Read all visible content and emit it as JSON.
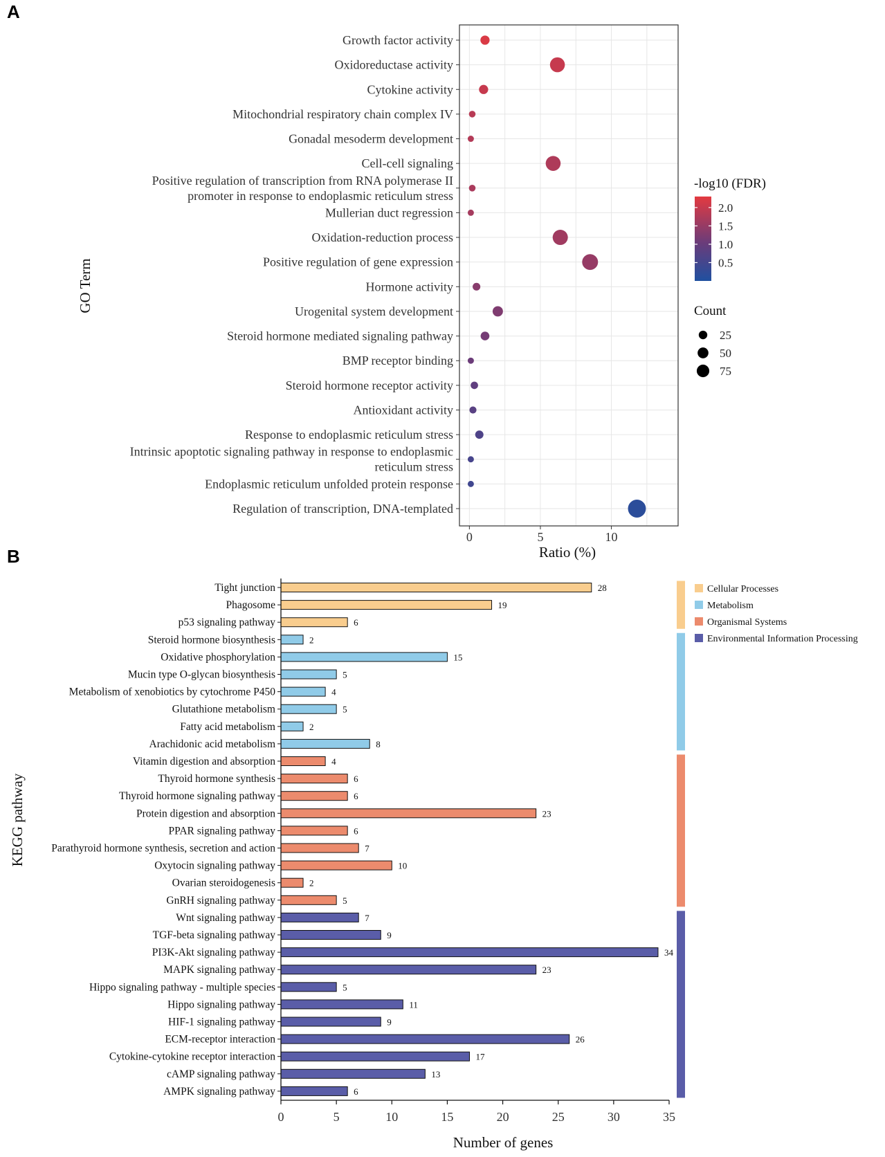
{
  "panel_labels": [
    "A",
    "B"
  ],
  "chart_data": [
    {
      "type": "scatter",
      "panel": "A",
      "xlabel": "Ratio (%)",
      "ylabel": "GO Term",
      "xlim": [
        -0.7,
        14.7
      ],
      "xticks": [
        0,
        5,
        10
      ],
      "grid": true,
      "color_legend": {
        "title": "-log10 (FDR)",
        "ticks": [
          "2.0",
          "1.5",
          "1.0",
          "0.5"
        ],
        "tick_values": [
          2.0,
          1.5,
          1.0,
          0.5
        ],
        "range": [
          0.0,
          2.3
        ],
        "low_color": "#2050a0",
        "mid_color": "#6a3c7a",
        "high_color": "#e33a40"
      },
      "size_legend": {
        "title": "Count",
        "labels": [
          "25",
          "50",
          "75"
        ],
        "values": [
          25,
          50,
          75
        ]
      },
      "terms": [
        {
          "label": [
            "Growth factor activity"
          ],
          "ratio": 1.1,
          "count": 12,
          "fdr": 2.2
        },
        {
          "label": [
            "Oxidoreductase activity"
          ],
          "ratio": 6.2,
          "count": 55,
          "fdr": 2.0
        },
        {
          "label": [
            "Cytokine activity"
          ],
          "ratio": 1.0,
          "count": 12,
          "fdr": 2.0
        },
        {
          "label": [
            "Mitochondrial respiratory chain complex IV"
          ],
          "ratio": 0.2,
          "count": 3,
          "fdr": 1.85
        },
        {
          "label": [
            "Gonadal mesoderm development"
          ],
          "ratio": 0.1,
          "count": 2,
          "fdr": 1.8
        },
        {
          "label": [
            "Cell-cell signaling"
          ],
          "ratio": 5.9,
          "count": 55,
          "fdr": 1.75
        },
        {
          "label": [
            "Positive regulation of transcription from RNA polymerase II",
            "promoter in response to endoplasmic reticulum stress"
          ],
          "ratio": 0.2,
          "count": 3,
          "fdr": 1.7
        },
        {
          "label": [
            "Mullerian duct regression"
          ],
          "ratio": 0.1,
          "count": 2,
          "fdr": 1.65
        },
        {
          "label": [
            "Oxidation-reduction process"
          ],
          "ratio": 6.4,
          "count": 58,
          "fdr": 1.6
        },
        {
          "label": [
            "Positive regulation of gene expression"
          ],
          "ratio": 8.5,
          "count": 65,
          "fdr": 1.5
        },
        {
          "label": [
            "Hormone activity"
          ],
          "ratio": 0.5,
          "count": 6,
          "fdr": 1.35
        },
        {
          "label": [
            "Urogenital system development"
          ],
          "ratio": 2.0,
          "count": 18,
          "fdr": 1.25
        },
        {
          "label": [
            "Steroid hormone mediated signaling pathway"
          ],
          "ratio": 1.1,
          "count": 10,
          "fdr": 1.15
        },
        {
          "label": [
            "BMP receptor binding"
          ],
          "ratio": 0.1,
          "count": 2,
          "fdr": 1.05
        },
        {
          "label": [
            "Steroid hormone receptor activity"
          ],
          "ratio": 0.35,
          "count": 5,
          "fdr": 0.9
        },
        {
          "label": [
            "Antioxidant activity"
          ],
          "ratio": 0.25,
          "count": 4,
          "fdr": 0.8
        },
        {
          "label": [
            "Response to endoplasmic reticulum stress"
          ],
          "ratio": 0.7,
          "count": 8,
          "fdr": 0.65
        },
        {
          "label": [
            "Intrinsic apoptotic signaling pathway in response to endoplasmic",
            "reticulum stress"
          ],
          "ratio": 0.1,
          "count": 2,
          "fdr": 0.55
        },
        {
          "label": [
            "Endoplasmic reticulum unfolded protein response"
          ],
          "ratio": 0.1,
          "count": 2,
          "fdr": 0.45
        },
        {
          "label": [
            "Regulation of transcription, DNA-templated"
          ],
          "ratio": 11.8,
          "count": 90,
          "fdr": 0.15
        }
      ]
    },
    {
      "type": "bar",
      "panel": "B",
      "orientation": "horizontal",
      "xlabel": "Number of genes",
      "ylabel": "KEGG pathway",
      "xlim": [
        0,
        35
      ],
      "xticks": [
        0,
        5,
        10,
        15,
        20,
        25,
        30,
        35
      ],
      "groups": [
        {
          "name": "Cellular Processes",
          "color": "#f9cd8e"
        },
        {
          "name": "Metabolism",
          "color": "#90cbe8"
        },
        {
          "name": "Organismal Systems",
          "color": "#ec8b6d"
        },
        {
          "name": "Environmental Information Processing",
          "color": "#5a5da8"
        }
      ],
      "pathways": [
        {
          "name": "Tight junction",
          "value": 28,
          "group": 0
        },
        {
          "name": "Phagosome",
          "value": 19,
          "group": 0
        },
        {
          "name": "p53 signaling pathway",
          "value": 6,
          "group": 0
        },
        {
          "name": "Steroid hormone biosynthesis",
          "value": 2,
          "group": 1
        },
        {
          "name": "Oxidative phosphorylation",
          "value": 15,
          "group": 1
        },
        {
          "name": "Mucin type O-glycan biosynthesis",
          "value": 5,
          "group": 1
        },
        {
          "name": "Metabolism of xenobiotics by cytochrome P450",
          "value": 4,
          "group": 1
        },
        {
          "name": "Glutathione metabolism",
          "value": 5,
          "group": 1
        },
        {
          "name": "Fatty acid metabolism",
          "value": 2,
          "group": 1
        },
        {
          "name": "Arachidonic acid metabolism",
          "value": 8,
          "group": 1
        },
        {
          "name": "Vitamin digestion and absorption",
          "value": 4,
          "group": 2
        },
        {
          "name": "Thyroid hormone synthesis",
          "value": 6,
          "group": 2
        },
        {
          "name": "Thyroid hormone signaling pathway",
          "value": 6,
          "group": 2
        },
        {
          "name": "Protein digestion and absorption",
          "value": 23,
          "group": 2
        },
        {
          "name": "PPAR signaling pathway",
          "value": 6,
          "group": 2
        },
        {
          "name": "Parathyroid hormone synthesis, secretion and action",
          "value": 7,
          "group": 2
        },
        {
          "name": "Oxytocin signaling pathway",
          "value": 10,
          "group": 2
        },
        {
          "name": "Ovarian steroidogenesis",
          "value": 2,
          "group": 2
        },
        {
          "name": "GnRH signaling pathway",
          "value": 5,
          "group": 2
        },
        {
          "name": "Wnt signaling pathway",
          "value": 7,
          "group": 3
        },
        {
          "name": "TGF-beta signaling pathway",
          "value": 9,
          "group": 3
        },
        {
          "name": "PI3K-Akt signaling pathway",
          "value": 34,
          "group": 3
        },
        {
          "name": "MAPK signaling pathway",
          "value": 23,
          "group": 3
        },
        {
          "name": "Hippo signaling pathway - multiple species",
          "value": 5,
          "group": 3
        },
        {
          "name": "Hippo signaling pathway",
          "value": 11,
          "group": 3
        },
        {
          "name": "HIF-1 signaling pathway",
          "value": 9,
          "group": 3
        },
        {
          "name": "ECM-receptor interaction",
          "value": 26,
          "group": 3
        },
        {
          "name": "Cytokine-cytokine receptor interaction",
          "value": 17,
          "group": 3
        },
        {
          "name": "cAMP signaling pathway",
          "value": 13,
          "group": 3
        },
        {
          "name": "AMPK signaling pathway",
          "value": 6,
          "group": 3
        }
      ]
    }
  ]
}
